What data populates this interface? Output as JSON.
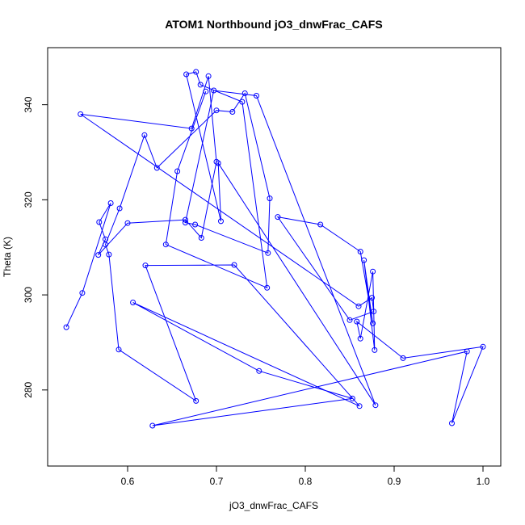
{
  "chart_data": {
    "type": "line",
    "title": "ATOM1 Northbound jO3_dnwFrac_CAFS",
    "xlabel": "jO3_dnwFrac_CAFS",
    "ylabel": "Theta (K)",
    "xlim": [
      0.51,
      1.02
    ],
    "ylim": [
      264,
      352
    ],
    "xticks": [
      0.6,
      0.7,
      0.8,
      0.9,
      1.0
    ],
    "xtick_labels": [
      "0.6",
      "0.7",
      "0.8",
      "0.9",
      "1.0"
    ],
    "yticks": [
      280,
      300,
      320,
      340
    ],
    "ytick_labels": [
      "280",
      "300",
      "320",
      "340"
    ],
    "grid": false,
    "series_color": "#0000ff",
    "series": [
      {
        "x": [
          0.531,
          0.549,
          0.581,
          0.568,
          0.575,
          0.567,
          0.6,
          0.665,
          0.683,
          0.7,
          0.691,
          0.672,
          0.547,
          0.86,
          0.875,
          0.877,
          0.85,
          0.769,
          0.817,
          0.862,
          0.876,
          0.866,
          0.878,
          0.876,
          0.862,
          0.858,
          0.91,
          1.0,
          0.965,
          0.982,
          0.628,
          0.853,
          0.748,
          0.606,
          0.861,
          0.72,
          0.62,
          0.677,
          0.59,
          0.579,
          0.575,
          0.591,
          0.619,
          0.633,
          0.7,
          0.718,
          0.732,
          0.76,
          0.758,
          0.676,
          0.665,
          0.697,
          0.745,
          0.879,
          0.702,
          0.705,
          0.666,
          0.677,
          0.682,
          0.729,
          0.757,
          0.643,
          0.656,
          0.688
        ],
        "y": [
          293.2,
          300.4,
          319.3,
          315.3,
          311.7,
          308.4,
          315.1,
          315.8,
          312.0,
          328.0,
          346.0,
          335.0,
          338.0,
          297.6,
          299.4,
          296.5,
          294.7,
          316.4,
          314.8,
          309.1,
          294.0,
          307.3,
          288.4,
          304.9,
          290.8,
          294.4,
          286.7,
          289.1,
          273.0,
          288.1,
          272.5,
          278.2,
          284.0,
          298.4,
          276.6,
          306.3,
          306.2,
          277.7,
          288.5,
          308.5,
          310.6,
          318.2,
          333.6,
          326.7,
          338.8,
          338.5,
          342.4,
          320.3,
          308.8,
          314.8,
          315.2,
          343.0,
          341.9,
          276.8,
          327.7,
          315.5,
          346.4,
          346.9,
          344.2,
          340.6,
          301.5,
          310.6,
          326.0,
          342.8
        ]
      }
    ]
  }
}
